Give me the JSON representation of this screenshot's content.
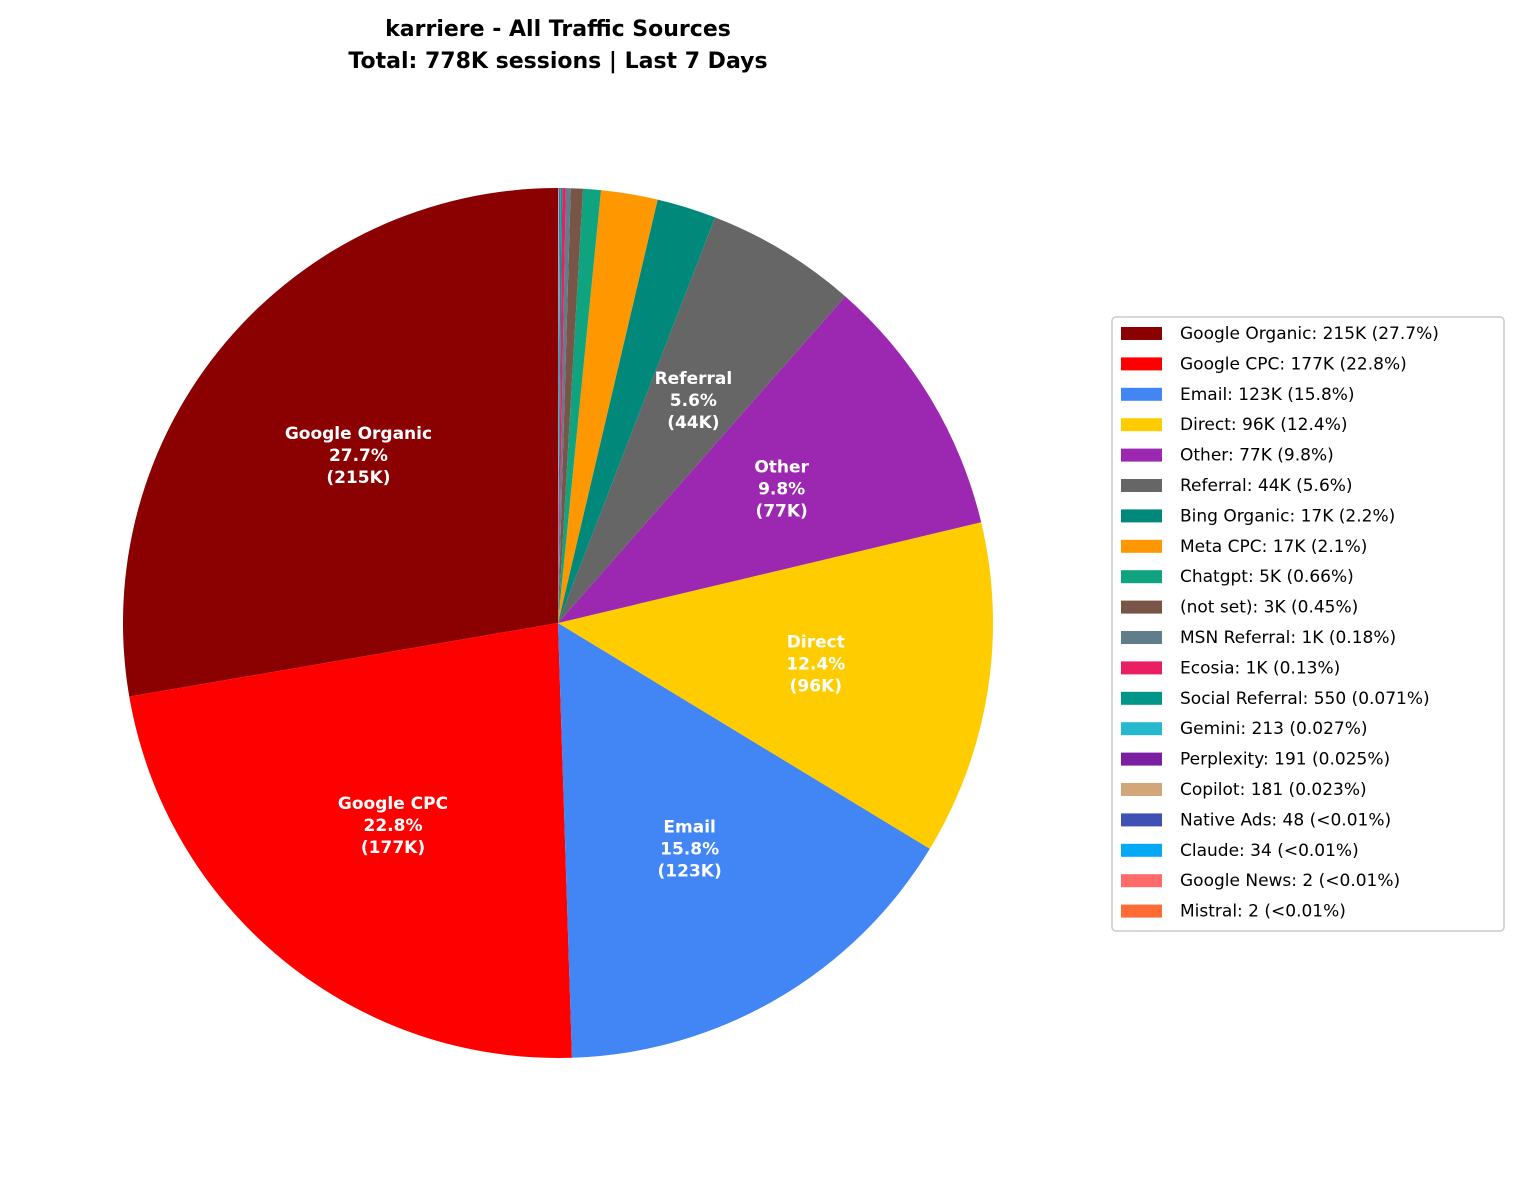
{
  "chart_data": {
    "type": "pie",
    "title": "karriere - All Traffic Sources",
    "subtitle": "Total: 778K sessions | Last 7 Days",
    "start_angle_deg": 90,
    "direction": "counterclockwise",
    "legend_position": "right",
    "slices": [
      {
        "name": "Google Organic",
        "value_label": "215K",
        "percent_label": "27.7%",
        "percent": 27.7,
        "color": "#8B0000",
        "show_label": true
      },
      {
        "name": "Google CPC",
        "value_label": "177K",
        "percent_label": "22.8%",
        "percent": 22.8,
        "color": "#FF0000",
        "show_label": true
      },
      {
        "name": "Email",
        "value_label": "123K",
        "percent_label": "15.8%",
        "percent": 15.8,
        "color": "#4285F4",
        "show_label": true
      },
      {
        "name": "Direct",
        "value_label": "96K",
        "percent_label": "12.4%",
        "percent": 12.4,
        "color": "#FFCC00",
        "show_label": true
      },
      {
        "name": "Other",
        "value_label": "77K",
        "percent_label": "9.8%",
        "percent": 9.8,
        "color": "#9C27B0",
        "show_label": true
      },
      {
        "name": "Referral",
        "value_label": "44K",
        "percent_label": "5.6%",
        "percent": 5.6,
        "color": "#666666",
        "show_label": true
      },
      {
        "name": "Bing Organic",
        "value_label": "17K",
        "percent_label": "2.2%",
        "percent": 2.2,
        "color": "#00897B",
        "show_label": false
      },
      {
        "name": "Meta CPC",
        "value_label": "17K",
        "percent_label": "2.1%",
        "percent": 2.1,
        "color": "#FF9800",
        "show_label": false
      },
      {
        "name": "Chatgpt",
        "value_label": "5K",
        "percent_label": "0.66%",
        "percent": 0.66,
        "color": "#10A37F",
        "show_label": false
      },
      {
        "name": "(not set)",
        "value_label": "3K",
        "percent_label": "0.45%",
        "percent": 0.45,
        "color": "#795548",
        "show_label": false
      },
      {
        "name": "MSN Referral",
        "value_label": "1K",
        "percent_label": "0.18%",
        "percent": 0.18,
        "color": "#607D8B",
        "show_label": false
      },
      {
        "name": "Ecosia",
        "value_label": "1K",
        "percent_label": "0.13%",
        "percent": 0.13,
        "color": "#E91E63",
        "show_label": false
      },
      {
        "name": "Social Referral",
        "value_label": "550",
        "percent_label": "0.071%",
        "percent": 0.071,
        "color": "#009688",
        "show_label": false
      },
      {
        "name": "Gemini",
        "value_label": "213",
        "percent_label": "0.027%",
        "percent": 0.027,
        "color": "#26B8CC",
        "show_label": false
      },
      {
        "name": "Perplexity",
        "value_label": "191",
        "percent_label": "0.025%",
        "percent": 0.025,
        "color": "#7B1FA2",
        "show_label": false
      },
      {
        "name": "Copilot",
        "value_label": "181",
        "percent_label": "0.023%",
        "percent": 0.023,
        "color": "#D2A679",
        "show_label": false
      },
      {
        "name": "Native Ads",
        "value_label": "48",
        "percent_label": "<0.01%",
        "percent": 0.0062,
        "color": "#3F51B5",
        "show_label": false
      },
      {
        "name": "Claude",
        "value_label": "34",
        "percent_label": "<0.01%",
        "percent": 0.0044,
        "color": "#03A9F4",
        "show_label": false
      },
      {
        "name": "Google News",
        "value_label": "2",
        "percent_label": "<0.01%",
        "percent": 0.0003,
        "color": "#FF6B6B",
        "show_label": false
      },
      {
        "name": "Mistral",
        "value_label": "2",
        "percent_label": "<0.01%",
        "percent": 0.0003,
        "color": "#FF6B35",
        "show_label": false
      }
    ]
  }
}
